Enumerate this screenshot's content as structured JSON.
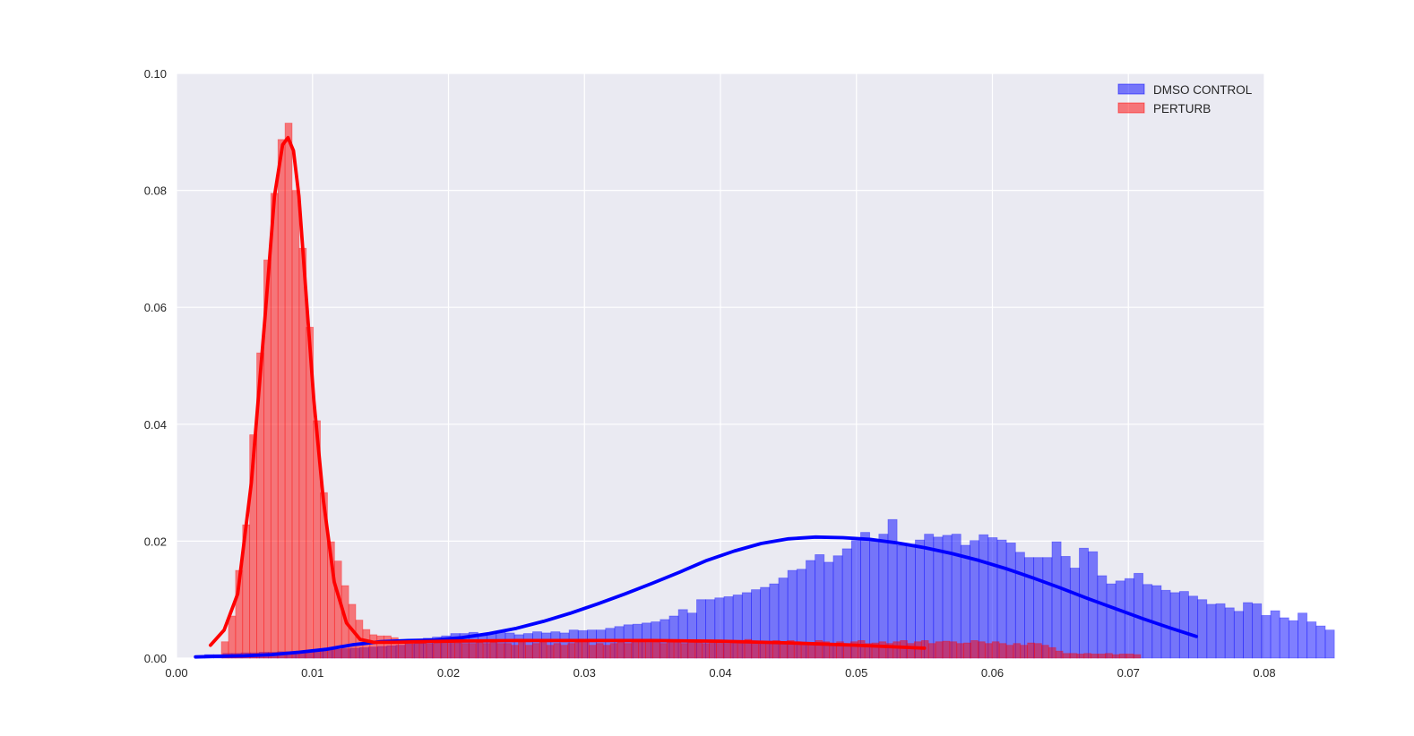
{
  "chart_data": {
    "type": "histogram",
    "title": "",
    "xlabel": "",
    "ylabel": "",
    "xlim": [
      0.0,
      0.08
    ],
    "ylim": [
      0.0,
      0.1
    ],
    "x_ticks": [
      "0.00",
      "0.01",
      "0.02",
      "0.03",
      "0.04",
      "0.05",
      "0.06",
      "0.07",
      "0.08"
    ],
    "y_ticks": [
      "0.00",
      "0.02",
      "0.04",
      "0.06",
      "0.08",
      "0.10"
    ],
    "grid": true,
    "legend_position": "top-right",
    "series": [
      {
        "name": "DMSO CONTROL",
        "color": "#0000ff",
        "fill_alpha": 0.5,
        "bin_start": 0.0014,
        "bin_width": 0.00067,
        "values": [
          0.0003,
          0.0006,
          0.0006,
          0.0008,
          0.0008,
          0.0009,
          0.0009,
          0.001,
          0.001,
          0.0011,
          0.0011,
          0.0012,
          0.0012,
          0.0013,
          0.0014,
          0.0015,
          0.0016,
          0.0017,
          0.0018,
          0.0019,
          0.002,
          0.0021,
          0.0022,
          0.0024,
          0.0025,
          0.0034,
          0.0036,
          0.0038,
          0.0042,
          0.0042,
          0.0044,
          0.0038,
          0.0042,
          0.0044,
          0.0043,
          0.004,
          0.0042,
          0.0045,
          0.0043,
          0.0045,
          0.0043,
          0.0048,
          0.0047,
          0.0048,
          0.0048,
          0.0051,
          0.0054,
          0.0057,
          0.0058,
          0.006,
          0.0062,
          0.0066,
          0.0072,
          0.0083,
          0.0077,
          0.01,
          0.01,
          0.0103,
          0.0105,
          0.0108,
          0.0112,
          0.0117,
          0.0121,
          0.0127,
          0.0137,
          0.015,
          0.0152,
          0.0167,
          0.0177,
          0.0164,
          0.0175,
          0.0187,
          0.0201,
          0.0215,
          0.02,
          0.0212,
          0.0237,
          0.0193,
          0.0195,
          0.0202,
          0.0212,
          0.0207,
          0.021,
          0.0212,
          0.0193,
          0.0201,
          0.0211,
          0.0206,
          0.0202,
          0.0197,
          0.0181,
          0.0172,
          0.0172,
          0.0172,
          0.0199,
          0.0174,
          0.0154,
          0.0188,
          0.0182,
          0.0141,
          0.0127,
          0.0132,
          0.0136,
          0.0145,
          0.0126,
          0.0124,
          0.0116,
          0.0112,
          0.0114,
          0.0106,
          0.01,
          0.0092,
          0.0093,
          0.0086,
          0.008,
          0.0095,
          0.0093,
          0.0073,
          0.0081,
          0.0069,
          0.0064,
          0.0077,
          0.0062,
          0.0055,
          0.0048
        ],
        "curve": {
          "x": [
            0.0014,
            0.003,
            0.005,
            0.007,
            0.009,
            0.011,
            0.013,
            0.015,
            0.017,
            0.019,
            0.021,
            0.023,
            0.025,
            0.027,
            0.029,
            0.031,
            0.033,
            0.035,
            0.037,
            0.039,
            0.041,
            0.043,
            0.045,
            0.047,
            0.049,
            0.051,
            0.053,
            0.055,
            0.057,
            0.059,
            0.061,
            0.063,
            0.065,
            0.067,
            0.069,
            0.071,
            0.073,
            0.075
          ],
          "y": [
            0.0002,
            0.0003,
            0.0004,
            0.0006,
            0.001,
            0.0015,
            0.0023,
            0.0028,
            0.003,
            0.0031,
            0.0035,
            0.0042,
            0.0051,
            0.0063,
            0.0077,
            0.0093,
            0.011,
            0.0128,
            0.0147,
            0.0167,
            0.0183,
            0.0196,
            0.0204,
            0.0207,
            0.0206,
            0.0203,
            0.0197,
            0.0189,
            0.0179,
            0.0167,
            0.0153,
            0.0137,
            0.012,
            0.0102,
            0.0085,
            0.0068,
            0.0052,
            0.0037
          ]
        }
      },
      {
        "name": "PERTURB",
        "color": "#ff0000",
        "fill_alpha": 0.5,
        "bin_start": 0.0033,
        "bin_width": 0.00052,
        "values": [
          0.0028,
          0.0072,
          0.015,
          0.0228,
          0.0382,
          0.0522,
          0.0681,
          0.0795,
          0.0887,
          0.0915,
          0.08,
          0.0701,
          0.0566,
          0.0406,
          0.0283,
          0.0199,
          0.0166,
          0.0124,
          0.0092,
          0.0065,
          0.0049,
          0.004,
          0.0038,
          0.0038,
          0.0035,
          0.003,
          0.003,
          0.0028,
          0.0025,
          0.0024,
          0.0028,
          0.0028,
          0.0027,
          0.0026,
          0.0025,
          0.0025,
          0.003,
          0.0025,
          0.0028,
          0.0025,
          0.0025,
          0.0022,
          0.0028,
          0.0022,
          0.0025,
          0.0028,
          0.0022,
          0.0025,
          0.0022,
          0.0025,
          0.0028,
          0.0028,
          0.0022,
          0.0025,
          0.0022,
          0.0025,
          0.0028,
          0.0025,
          0.0028,
          0.0028,
          0.003,
          0.0028,
          0.0025,
          0.0028,
          0.0028,
          0.0025,
          0.003,
          0.0028,
          0.0025,
          0.0028,
          0.003,
          0.0025,
          0.0028,
          0.0025,
          0.0032,
          0.0025,
          0.0028,
          0.0028,
          0.003,
          0.0025,
          0.003,
          0.0028,
          0.0025,
          0.0025,
          0.003,
          0.0028,
          0.0025,
          0.0028,
          0.0025,
          0.0028,
          0.003,
          0.0025,
          0.0026,
          0.0028,
          0.0025,
          0.0028,
          0.003,
          0.0025,
          0.0028,
          0.003,
          0.0025,
          0.0028,
          0.0029,
          0.0028,
          0.0025,
          0.0026,
          0.003,
          0.0028,
          0.0025,
          0.0028,
          0.0025,
          0.0022,
          0.0025,
          0.0022,
          0.0026,
          0.0025,
          0.0022,
          0.0018,
          0.0012,
          0.0008,
          0.0008,
          0.0007,
          0.0008,
          0.0007,
          0.0007,
          0.0008,
          0.0006,
          0.0007,
          0.0007,
          0.0006
        ],
        "curve": {
          "x": [
            0.0025,
            0.0035,
            0.0045,
            0.0055,
            0.0065,
            0.0072,
            0.0078,
            0.0082,
            0.0086,
            0.009,
            0.0095,
            0.0101,
            0.0108,
            0.0116,
            0.0125,
            0.0135,
            0.0145,
            0.016,
            0.018,
            0.02,
            0.025,
            0.03,
            0.035,
            0.04,
            0.045,
            0.05,
            0.055
          ],
          "y": [
            0.0022,
            0.0048,
            0.011,
            0.03,
            0.058,
            0.079,
            0.0878,
            0.089,
            0.0868,
            0.079,
            0.063,
            0.044,
            0.027,
            0.013,
            0.006,
            0.0032,
            0.0027,
            0.0027,
            0.0028,
            0.0029,
            0.003,
            0.003,
            0.003,
            0.0029,
            0.0026,
            0.0022,
            0.0017
          ]
        }
      }
    ]
  }
}
